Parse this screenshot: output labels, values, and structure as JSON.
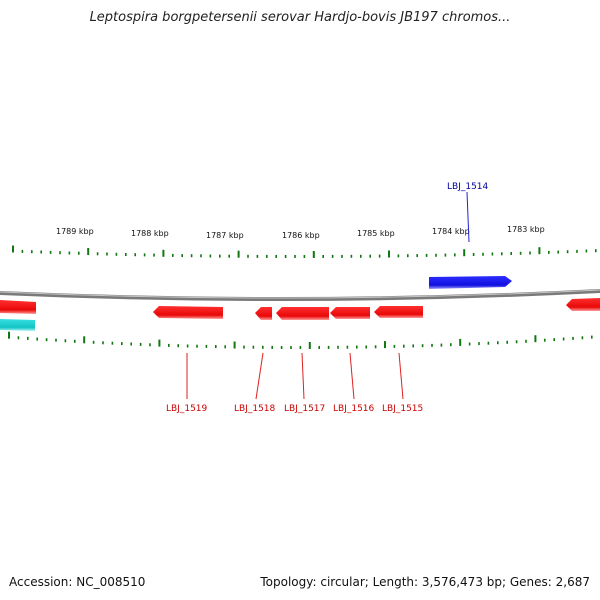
{
  "title": "Leptospira borgpetersenii serovar Hardjo-bovis JB197 chromos...",
  "footer": {
    "accession": "Accession: NC_008510",
    "summary": "Topology: circular; Length: 3,576,473 bp; Genes: 2,687"
  },
  "colors": {
    "forward_strand": "#1a1aee",
    "reverse_strand": "#ee1111",
    "other_feature": "#19c9c9",
    "backbone": "#888888",
    "ticks": "#117711",
    "forward_label": "#000099",
    "reverse_label": "#cc0000"
  },
  "scale_labels": [
    "1789 kbp",
    "1788 kbp",
    "1787 kbp",
    "1786 kbp",
    "1785 kbp",
    "1784 kbp",
    "1783 kbp"
  ],
  "genes": [
    {
      "name": "LBJ_1514",
      "strand": "forward"
    },
    {
      "name": "LBJ_1515",
      "strand": "reverse"
    },
    {
      "name": "LBJ_1516",
      "strand": "reverse"
    },
    {
      "name": "LBJ_1517",
      "strand": "reverse"
    },
    {
      "name": "LBJ_1518",
      "strand": "reverse"
    },
    {
      "name": "LBJ_1519",
      "strand": "reverse"
    }
  ]
}
